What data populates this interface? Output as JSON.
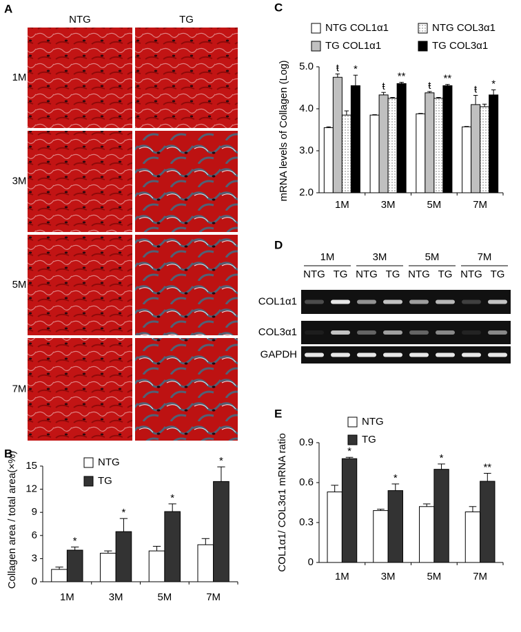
{
  "histology": {
    "panel_label": "A",
    "columns": [
      "NTG",
      "TG"
    ],
    "rows": [
      "1M",
      "3M",
      "5M",
      "7M"
    ]
  },
  "gel": {
    "panel_label": "D",
    "groups": [
      "1M",
      "3M",
      "5M",
      "7M"
    ],
    "lanes": [
      "NTG",
      "TG",
      "NTG",
      "TG",
      "NTG",
      "TG",
      "NTG",
      "TG"
    ],
    "rows": [
      "COL1α1",
      "COL3α1",
      "GAPDH"
    ]
  },
  "chart_data": [
    {
      "type": "bar",
      "panel_label": "B",
      "y_label": "Collagen area / total area(×%)",
      "categories": [
        "1M",
        "3M",
        "5M",
        "7M"
      ],
      "ylim": [
        0,
        15
      ],
      "yticks": [
        0,
        3,
        6,
        9,
        12,
        15
      ],
      "series": [
        {
          "name": "NTG",
          "color": "#ffffff",
          "values": [
            1.6,
            3.7,
            4.0,
            4.8
          ],
          "errors": [
            0.3,
            0.3,
            0.6,
            0.8
          ]
        },
        {
          "name": "TG",
          "color": "#333333",
          "values": [
            4.1,
            6.5,
            9.1,
            13.0
          ],
          "errors": [
            0.4,
            1.7,
            1.0,
            1.9
          ],
          "significance": [
            "*",
            "*",
            "*",
            "*"
          ]
        }
      ]
    },
    {
      "type": "bar",
      "panel_label": "C",
      "y_label": "mRNA levels of Collagen (Log)",
      "categories": [
        "1M",
        "3M",
        "5M",
        "7M"
      ],
      "ylim": [
        2,
        5
      ],
      "yticks": [
        {
          "value": 2,
          "label": "2.0"
        },
        {
          "value": 3,
          "label": "3.0"
        },
        {
          "value": 4,
          "label": "4.0"
        },
        {
          "value": 5,
          "label": "5.0"
        }
      ],
      "series": [
        {
          "name": "NTG COL1α1",
          "color": "#ffffff",
          "values": [
            3.55,
            3.85,
            3.88,
            3.57
          ],
          "errors": [
            0.02,
            0.01,
            0.01,
            0.01
          ]
        },
        {
          "name": "TG COL1α1",
          "color": "#c0c0c0",
          "values": [
            4.75,
            4.33,
            4.38,
            4.1
          ],
          "errors": [
            0.08,
            0.06,
            0.03,
            0.22
          ],
          "significance": [
            "ŧ",
            "ŧ",
            "ŧ",
            "ŧ"
          ]
        },
        {
          "name": "NTG COL3α1",
          "color": "#ffffff",
          "pattern": "dots",
          "values": [
            3.85,
            4.25,
            4.25,
            4.05
          ],
          "errors": [
            0.1,
            0.02,
            0.02,
            0.06
          ]
        },
        {
          "name": "TG COL3α1",
          "color": "#000000",
          "values": [
            4.55,
            4.6,
            4.55,
            4.33
          ],
          "errors": [
            0.25,
            0.03,
            0.03,
            0.12
          ],
          "significance": [
            "*",
            "**",
            "**",
            "*"
          ]
        }
      ]
    },
    {
      "type": "bar",
      "panel_label": "E",
      "y_label": "COL1α1/ COL3α1 mRNA ratio",
      "categories": [
        "1M",
        "3M",
        "5M",
        "7M"
      ],
      "ylim": [
        0,
        0.9
      ],
      "yticks": [
        0,
        0.3,
        0.6,
        0.9
      ],
      "series": [
        {
          "name": "NTG",
          "color": "#ffffff",
          "values": [
            0.53,
            0.39,
            0.42,
            0.38
          ],
          "errors": [
            0.05,
            0.01,
            0.02,
            0.04
          ]
        },
        {
          "name": "TG",
          "color": "#333333",
          "values": [
            0.78,
            0.54,
            0.7,
            0.61
          ],
          "errors": [
            0.01,
            0.05,
            0.04,
            0.06
          ],
          "significance": [
            "*",
            "*",
            "*",
            "**"
          ]
        }
      ]
    }
  ]
}
